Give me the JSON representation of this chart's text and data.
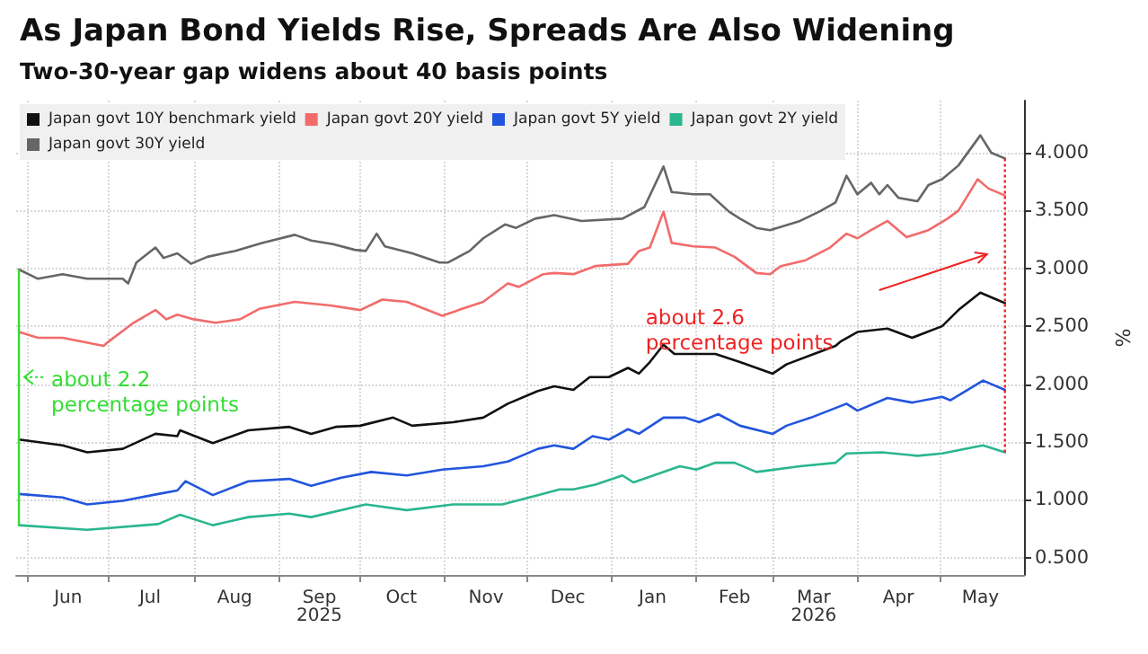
{
  "chart_data": {
    "type": "line",
    "title": "As Japan Bond Yields Rise, Spreads Are Also Widening",
    "subtitle": "Two-30-year gap widens about 40 basis points",
    "ylabel": "%",
    "series": [
      {
        "name": "Japan govt 10Y benchmark yield",
        "color": "#111111",
        "x": [
          "2025-05-29",
          "2025-06-14",
          "2025-06-23",
          "2025-07-06",
          "2025-07-18",
          "2025-07-26",
          "2025-07-27",
          "2025-08-08",
          "2025-08-21",
          "2025-09-05",
          "2025-09-13",
          "2025-09-22",
          "2025-10-01",
          "2025-10-13",
          "2025-10-20",
          "2025-11-04",
          "2025-11-15",
          "2025-11-24",
          "2025-12-05",
          "2025-12-11",
          "2025-12-18",
          "2025-12-24",
          "2025-12-31",
          "2026-01-07",
          "2026-01-11",
          "2026-01-15",
          "2026-01-20",
          "2026-01-24",
          "2026-01-31",
          "2026-02-08",
          "2026-02-17",
          "2026-02-23",
          "2026-03-01",
          "2026-03-06",
          "2026-03-15",
          "2026-03-24",
          "2026-03-26",
          "2026-04-01",
          "2026-04-12",
          "2026-04-21",
          "2026-05-02",
          "2026-05-08",
          "2026-05-16",
          "2026-05-22",
          "2026-05-25"
        ],
        "values": [
          1.52,
          1.47,
          1.41,
          1.44,
          1.57,
          1.55,
          1.6,
          1.49,
          1.6,
          1.63,
          1.57,
          1.63,
          1.64,
          1.71,
          1.64,
          1.67,
          1.71,
          1.83,
          1.94,
          1.98,
          1.95,
          2.06,
          2.06,
          2.14,
          2.09,
          2.19,
          2.34,
          2.26,
          2.26,
          2.26,
          2.19,
          2.14,
          2.09,
          2.17,
          2.25,
          2.33,
          2.37,
          2.45,
          2.48,
          2.4,
          2.5,
          2.64,
          2.79,
          2.73,
          2.7
        ]
      },
      {
        "name": "Japan govt 20Y yield",
        "color": "#f26b6b",
        "x": [
          "2025-05-29",
          "2025-06-05",
          "2025-06-14",
          "2025-06-29",
          "2025-07-01",
          "2025-07-10",
          "2025-07-18",
          "2025-07-22",
          "2025-07-26",
          "2025-08-01",
          "2025-08-09",
          "2025-08-18",
          "2025-08-25",
          "2025-09-07",
          "2025-09-20",
          "2025-10-01",
          "2025-10-09",
          "2025-10-18",
          "2025-10-31",
          "2025-11-06",
          "2025-11-15",
          "2025-11-24",
          "2025-11-28",
          "2025-12-07",
          "2025-12-11",
          "2025-12-18",
          "2025-12-26",
          "2026-01-07",
          "2026-01-11",
          "2026-01-15",
          "2026-01-20",
          "2026-01-23",
          "2026-01-31",
          "2026-02-08",
          "2026-02-15",
          "2026-02-23",
          "2026-02-28",
          "2026-03-04",
          "2026-03-13",
          "2026-03-22",
          "2026-03-28",
          "2026-04-01",
          "2026-04-06",
          "2026-04-12",
          "2026-04-19",
          "2026-04-27",
          "2026-05-04",
          "2026-05-08",
          "2026-05-15",
          "2026-05-19",
          "2026-05-25"
        ],
        "values": [
          2.45,
          2.4,
          2.4,
          2.33,
          2.37,
          2.53,
          2.64,
          2.56,
          2.6,
          2.56,
          2.53,
          2.56,
          2.65,
          2.71,
          2.68,
          2.64,
          2.73,
          2.71,
          2.59,
          2.64,
          2.71,
          2.87,
          2.84,
          2.95,
          2.96,
          2.95,
          3.02,
          3.04,
          3.15,
          3.18,
          3.49,
          3.22,
          3.19,
          3.18,
          3.1,
          2.96,
          2.95,
          3.02,
          3.07,
          3.18,
          3.3,
          3.26,
          3.33,
          3.41,
          3.27,
          3.33,
          3.43,
          3.5,
          3.77,
          3.69,
          3.63
        ]
      },
      {
        "name": "Japan govt 5Y yield",
        "color": "#2255dd",
        "x": [
          "2025-05-29",
          "2025-06-14",
          "2025-06-23",
          "2025-07-06",
          "2025-07-19",
          "2025-07-26",
          "2025-07-29",
          "2025-08-08",
          "2025-08-21",
          "2025-09-05",
          "2025-09-13",
          "2025-09-24",
          "2025-10-05",
          "2025-10-18",
          "2025-10-31",
          "2025-11-15",
          "2025-11-24",
          "2025-12-05",
          "2025-12-11",
          "2025-12-18",
          "2025-12-25",
          "2025-12-31",
          "2026-01-07",
          "2026-01-11",
          "2026-01-20",
          "2026-01-28",
          "2026-02-02",
          "2026-02-09",
          "2026-02-17",
          "2026-03-01",
          "2026-03-06",
          "2026-03-15",
          "2026-03-28",
          "2026-04-01",
          "2026-04-12",
          "2026-04-21",
          "2026-05-02",
          "2026-05-05",
          "2026-05-17",
          "2026-05-25"
        ],
        "values": [
          1.05,
          1.02,
          0.96,
          0.99,
          1.05,
          1.08,
          1.16,
          1.04,
          1.16,
          1.18,
          1.12,
          1.19,
          1.24,
          1.21,
          1.26,
          1.29,
          1.33,
          1.44,
          1.47,
          1.44,
          1.55,
          1.52,
          1.61,
          1.57,
          1.71,
          1.71,
          1.67,
          1.74,
          1.64,
          1.57,
          1.64,
          1.71,
          1.83,
          1.77,
          1.88,
          1.84,
          1.89,
          1.86,
          2.03,
          1.95
        ]
      },
      {
        "name": "Japan govt 2Y yield",
        "color": "#2ab68e",
        "x": [
          "2025-05-29",
          "2025-06-23",
          "2025-07-19",
          "2025-07-27",
          "2025-08-08",
          "2025-08-21",
          "2025-09-05",
          "2025-09-13",
          "2025-10-03",
          "2025-10-18",
          "2025-11-04",
          "2025-11-22",
          "2025-12-05",
          "2025-12-13",
          "2025-12-18",
          "2025-12-26",
          "2026-01-05",
          "2026-01-09",
          "2026-01-26",
          "2026-02-01",
          "2026-02-08",
          "2026-02-15",
          "2026-02-23",
          "2026-03-11",
          "2026-03-24",
          "2026-03-28",
          "2026-04-10",
          "2026-04-23",
          "2026-05-02",
          "2026-05-17",
          "2026-05-25"
        ],
        "values": [
          0.78,
          0.74,
          0.79,
          0.87,
          0.78,
          0.85,
          0.88,
          0.85,
          0.96,
          0.91,
          0.96,
          0.96,
          1.04,
          1.09,
          1.09,
          1.13,
          1.21,
          1.15,
          1.29,
          1.26,
          1.32,
          1.32,
          1.24,
          1.29,
          1.32,
          1.4,
          1.41,
          1.38,
          1.4,
          1.47,
          1.41
        ]
      },
      {
        "name": "Japan govt 30Y yield",
        "color": "#666666",
        "x": [
          "2025-05-29",
          "2025-06-05",
          "2025-06-14",
          "2025-06-23",
          "2025-07-01",
          "2025-07-06",
          "2025-07-08",
          "2025-07-11",
          "2025-07-18",
          "2025-07-21",
          "2025-07-26",
          "2025-07-31",
          "2025-08-06",
          "2025-08-16",
          "2025-08-26",
          "2025-09-07",
          "2025-09-13",
          "2025-09-21",
          "2025-09-29",
          "2025-10-03",
          "2025-10-07",
          "2025-10-10",
          "2025-10-20",
          "2025-10-30",
          "2025-11-02",
          "2025-11-10",
          "2025-11-15",
          "2025-11-23",
          "2025-11-27",
          "2025-12-04",
          "2025-12-11",
          "2025-12-21",
          "2026-01-05",
          "2026-01-13",
          "2026-01-20",
          "2026-01-23",
          "2026-01-31",
          "2026-02-06",
          "2026-02-13",
          "2026-02-17",
          "2026-02-23",
          "2026-02-28",
          "2026-03-11",
          "2026-03-18",
          "2026-03-24",
          "2026-03-28",
          "2026-04-01",
          "2026-04-06",
          "2026-04-09",
          "2026-04-12",
          "2026-04-16",
          "2026-04-23",
          "2026-04-27",
          "2026-05-02",
          "2026-05-08",
          "2026-05-16",
          "2026-05-20",
          "2026-05-25"
        ],
        "values": [
          2.99,
          2.91,
          2.95,
          2.91,
          2.91,
          2.91,
          2.87,
          3.05,
          3.18,
          3.09,
          3.13,
          3.04,
          3.1,
          3.15,
          3.22,
          3.29,
          3.24,
          3.21,
          3.16,
          3.15,
          3.3,
          3.19,
          3.13,
          3.05,
          3.05,
          3.15,
          3.26,
          3.38,
          3.35,
          3.43,
          3.46,
          3.41,
          3.43,
          3.53,
          3.88,
          3.66,
          3.64,
          3.64,
          3.49,
          3.43,
          3.35,
          3.33,
          3.41,
          3.49,
          3.57,
          3.8,
          3.64,
          3.74,
          3.64,
          3.72,
          3.61,
          3.58,
          3.72,
          3.77,
          3.89,
          4.15,
          4.0,
          3.95
        ]
      }
    ],
    "xlim": [
      "2025-05-28",
      "2026-06-01"
    ],
    "xticks": [
      {
        "value": "2025-06-01",
        "label": null
      },
      {
        "value": "2025-06-16",
        "label": "Jun"
      },
      {
        "value": "2025-07-01",
        "label": null
      },
      {
        "value": "2025-07-16",
        "label": "Jul"
      },
      {
        "value": "2025-08-01",
        "label": null
      },
      {
        "value": "2025-08-16",
        "label": "Aug"
      },
      {
        "value": "2025-09-01",
        "label": null
      },
      {
        "value": "2025-09-16",
        "label": "Sep\n2025"
      },
      {
        "value": "2025-10-01",
        "label": null
      },
      {
        "value": "2025-10-16",
        "label": "Oct"
      },
      {
        "value": "2025-11-01",
        "label": null
      },
      {
        "value": "2025-11-16",
        "label": "Nov"
      },
      {
        "value": "2025-12-01",
        "label": null
      },
      {
        "value": "2025-12-16",
        "label": "Dec"
      },
      {
        "value": "2026-01-01",
        "label": null
      },
      {
        "value": "2026-01-16",
        "label": "Jan"
      },
      {
        "value": "2026-02-01",
        "label": null
      },
      {
        "value": "2026-02-15",
        "label": "Feb"
      },
      {
        "value": "2026-03-01",
        "label": null
      },
      {
        "value": "2026-03-16",
        "label": "Mar\n2026"
      },
      {
        "value": "2026-04-01",
        "label": null
      },
      {
        "value": "2026-04-16",
        "label": "Apr"
      },
      {
        "value": "2026-05-01",
        "label": null
      },
      {
        "value": "2026-05-16",
        "label": "May"
      }
    ],
    "ylim": [
      0.35,
      4.45
    ],
    "yticks": [
      {
        "value": 0.5,
        "label": "0.500"
      },
      {
        "value": 1.0,
        "label": "1.000"
      },
      {
        "value": 1.5,
        "label": "1.500"
      },
      {
        "value": 2.0,
        "label": "2.000"
      },
      {
        "value": 2.5,
        "label": "2.500"
      },
      {
        "value": 3.0,
        "label": "3.000"
      },
      {
        "value": 3.5,
        "label": "3.500"
      },
      {
        "value": 4.0,
        "label": "4.000"
      }
    ],
    "ref_lines": [
      {
        "axis": "x",
        "value": "2025-05-29",
        "label": "about 2.2\npercentage points",
        "color": "#33dd33",
        "line_style": "solid"
      },
      {
        "axis": "x",
        "value": "2026-05-25",
        "label": "about 2.6\npercentage points",
        "color": "#ee2222",
        "line_style": "dotted"
      }
    ],
    "grid": true,
    "legend": "top left",
    "marker": "none",
    "line_style": "solid"
  }
}
